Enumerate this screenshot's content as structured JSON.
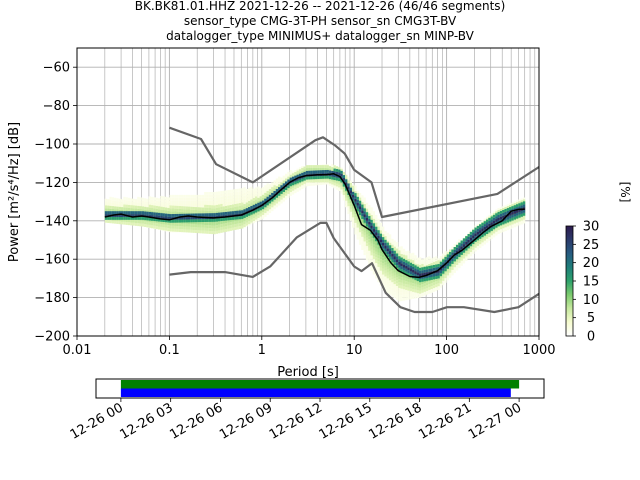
{
  "title_lines": [
    "BK.BK81.01.HHZ   2021-12-26 -- 2021-12-26  (46/46 segments)",
    "sensor_type CMG-3T-PH sensor_sn CMG3T-BV",
    "datalogger_type MINIMUS+ datalogger_sn MINP-BV"
  ],
  "colors": {
    "nhnm_nlnm": "#666666",
    "mode_line": "#000000",
    "grid": "#b0b0b0",
    "timeline_green": "#008000",
    "timeline_blue": "#0000ff"
  },
  "chart_data": [
    {
      "type": "heatmap",
      "title": "",
      "xlabel": "Period [s]",
      "ylabel": "Power [m²/s⁴/Hz] [dB]",
      "xscale": "log",
      "xlim": [
        0.01,
        1000
      ],
      "ylim": [
        -200,
        -50
      ],
      "x_ticks": [
        0.01,
        0.1,
        1,
        10,
        100,
        1000
      ],
      "x_tick_labels": [
        "0.01",
        "0.1",
        "1",
        "10",
        "100",
        "1000"
      ],
      "y_ticks": [
        -200,
        -180,
        -160,
        -140,
        -120,
        -100,
        -80,
        -60
      ],
      "y_tick_labels": [
        "−200",
        "−180",
        "−160",
        "−140",
        "−120",
        "−100",
        "−80",
        "−60"
      ],
      "grid": true,
      "colorbar": {
        "label": "[%]",
        "range": [
          0,
          30
        ],
        "ticks": [
          0,
          5,
          10,
          15,
          20,
          25,
          30
        ],
        "tick_labels": [
          "0",
          "5",
          "10",
          "15",
          "20",
          "25",
          "30"
        ],
        "colormap": [
          "#ffffff",
          "#f7fcd0",
          "#c7e9a0",
          "#7ccb6e",
          "#2ea26c",
          "#1f7f7a",
          "#275b80",
          "#2b3a6a",
          "#2d1b4e"
        ]
      },
      "series": [
        {
          "name": "",
          "role": "new high noise model",
          "x": [
            0.1,
            0.22,
            0.32,
            0.8,
            3.8,
            4.6,
            6.3,
            7.9,
            10,
            15.4,
            20,
            354.8,
            1000
          ],
          "y": [
            -91.5,
            -97.4,
            -110.5,
            -120,
            -98,
            -96.5,
            -101,
            -105,
            -113.5,
            -120,
            -138,
            -126,
            -112
          ]
        },
        {
          "name": "",
          "role": "new low noise model",
          "x": [
            0.1,
            0.17,
            0.4,
            0.8,
            1.24,
            2.4,
            4.3,
            5,
            6,
            10,
            12,
            15.6,
            21.9,
            31.6,
            45,
            70,
            101,
            154,
            328,
            600,
            1000
          ],
          "y": [
            -168,
            -166.7,
            -166.7,
            -169.2,
            -163.7,
            -148.6,
            -141.1,
            -141.1,
            -149,
            -163.8,
            -166.2,
            -162.1,
            -177.5,
            -185,
            -187.5,
            -187.5,
            -185,
            -185,
            -187.5,
            -185,
            -178
          ]
        },
        {
          "name": "",
          "role": "mode",
          "x": [
            0.02,
            0.025,
            0.03,
            0.04,
            0.05,
            0.06,
            0.08,
            0.1,
            0.13,
            0.16,
            0.2,
            0.3,
            0.4,
            0.6,
            0.8,
            1.0,
            1.3,
            1.6,
            2,
            2.5,
            3,
            4,
            5,
            6,
            7,
            8,
            10,
            12,
            15,
            18,
            20,
            25,
            30,
            40,
            50,
            60,
            80,
            100,
            120,
            150,
            200,
            250,
            300,
            400,
            500,
            600,
            700
          ],
          "y": [
            -138,
            -137,
            -136.5,
            -138,
            -137.5,
            -138,
            -139,
            -139.5,
            -138,
            -137.5,
            -138,
            -138.5,
            -138,
            -137,
            -134.5,
            -132,
            -128,
            -124,
            -120,
            -117.5,
            -116.5,
            -116,
            -116,
            -115.5,
            -117,
            -121,
            -132,
            -142,
            -145,
            -150,
            -155,
            -162,
            -166,
            -169,
            -169.5,
            -168.5,
            -166,
            -162,
            -158,
            -155,
            -150,
            -146,
            -143,
            -140,
            -135,
            -134,
            -134
          ]
        }
      ],
      "density_bands": [
        {
          "x": [
            0.02,
            0.05,
            0.1,
            0.3,
            0.6,
            1,
            2,
            3,
            5,
            7,
            10,
            15,
            20,
            30,
            50,
            80,
            120,
            200,
            350,
            700
          ],
          "center": [
            -137.5,
            -137.5,
            -139,
            -138.5,
            -137,
            -132,
            -120,
            -116.5,
            -116,
            -117,
            -130,
            -144,
            -153,
            -163,
            -169,
            -167,
            -158,
            -148,
            -140,
            -134
          ],
          "halfwidth": [
            2,
            2,
            2,
            2,
            2,
            2,
            2,
            2,
            2,
            2.5,
            3,
            3,
            3,
            3,
            3,
            3,
            3,
            3,
            3,
            3
          ],
          "level": 28
        },
        {
          "x": [
            0.02,
            0.05,
            0.1,
            0.3,
            0.6,
            1,
            2,
            3,
            5,
            7,
            10,
            15,
            20,
            30,
            50,
            80,
            120,
            200,
            350,
            700
          ],
          "center": [
            -137,
            -138,
            -139.5,
            -140,
            -138,
            -132,
            -121,
            -116,
            -116,
            -118,
            -133,
            -148,
            -158,
            -166,
            -171,
            -168,
            -159,
            -149,
            -140,
            -134
          ],
          "halfwidth": [
            4,
            5,
            6,
            7,
            6,
            5,
            4,
            4,
            4,
            5,
            8,
            10,
            10,
            9,
            7,
            6,
            5,
            5,
            5,
            5
          ],
          "level": 10
        },
        {
          "x": [
            0.02,
            0.05,
            0.1,
            0.3,
            0.6,
            1,
            2,
            3,
            5,
            7,
            10,
            15,
            20,
            30,
            50,
            80,
            120,
            200,
            350,
            700
          ],
          "center": [
            -134,
            -136,
            -137,
            -136,
            -134,
            -131,
            -121,
            -117,
            -116,
            -119,
            -135,
            -150,
            -160,
            -168,
            -170,
            -168,
            -160,
            -150,
            -141,
            -135
          ],
          "halfwidth": [
            5,
            7,
            9,
            10,
            10,
            8,
            6,
            5,
            5,
            6,
            12,
            16,
            16,
            14,
            10,
            8,
            7,
            6,
            6,
            6
          ],
          "level": 3
        }
      ]
    },
    {
      "type": "timeline",
      "xlabel": "",
      "x_ticks": [
        "12-26 00",
        "12-26 03",
        "12-26 06",
        "12-26 09",
        "12-26 12",
        "12-26 15",
        "12-26 18",
        "12-26 21",
        "12-27 00"
      ],
      "xlim_hours": [
        -1.5,
        25.5
      ],
      "bars": [
        {
          "name": "",
          "start_hour": 0,
          "end_hour": 24.0,
          "color": "#008000"
        },
        {
          "name": "",
          "start_hour": 0,
          "end_hour": 23.5,
          "color": "#0000ff"
        }
      ]
    }
  ]
}
